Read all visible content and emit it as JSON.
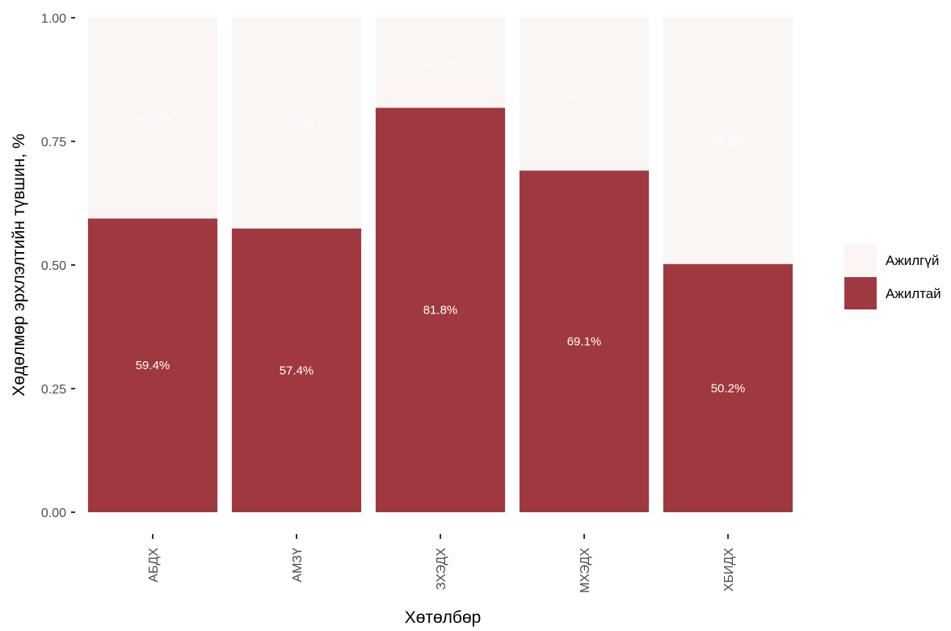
{
  "chart_data": {
    "type": "bar",
    "stacked": true,
    "categories": [
      "АБДХ",
      "АМЗҮ",
      "ЗХЭДХ",
      "МХЭДХ",
      "ХБИДХ"
    ],
    "series": [
      {
        "name": "Ажилтай",
        "color": "#a03840",
        "values": [
          0.594,
          0.574,
          0.818,
          0.691,
          0.502
        ],
        "labels": [
          "59.4%",
          "57.4%",
          "81.8%",
          "69.1%",
          "50.2%"
        ],
        "label_color": "#ffffff"
      },
      {
        "name": "Ажилгүй",
        "color": "#fbf5f4",
        "values": [
          0.406,
          0.426,
          0.182,
          0.309,
          0.498
        ],
        "labels": [
          "40.6%",
          "42.6%",
          "18.2%",
          "30.9%",
          "49.8%"
        ],
        "label_color": "#ffffff"
      }
    ],
    "xlabel": "Хөтөлбөр",
    "ylabel": "Хөдөлмөр эрхлэлтийн түвшин, %",
    "ylim": [
      0,
      1
    ],
    "yticks": [
      "0.00",
      "0.25",
      "0.50",
      "0.75",
      "1.00"
    ],
    "ytick_values": [
      0,
      0.25,
      0.5,
      0.75,
      1.0
    ],
    "grid": false,
    "legend_position": "right",
    "legend_order": [
      "Ажилгүй",
      "Ажилтай"
    ]
  }
}
